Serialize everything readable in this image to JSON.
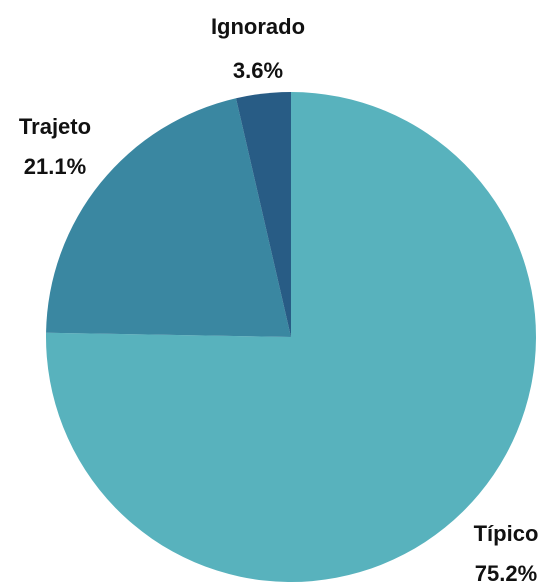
{
  "chart_data": {
    "type": "pie",
    "categories": [
      "Típico",
      "Trajeto",
      "Ignorado"
    ],
    "values": [
      75.2,
      21.1,
      3.6
    ],
    "value_labels": [
      "75.2%",
      "21.1%",
      "3.6%"
    ],
    "colors": [
      "#58b2bd",
      "#3a87a1",
      "#285c85"
    ]
  }
}
